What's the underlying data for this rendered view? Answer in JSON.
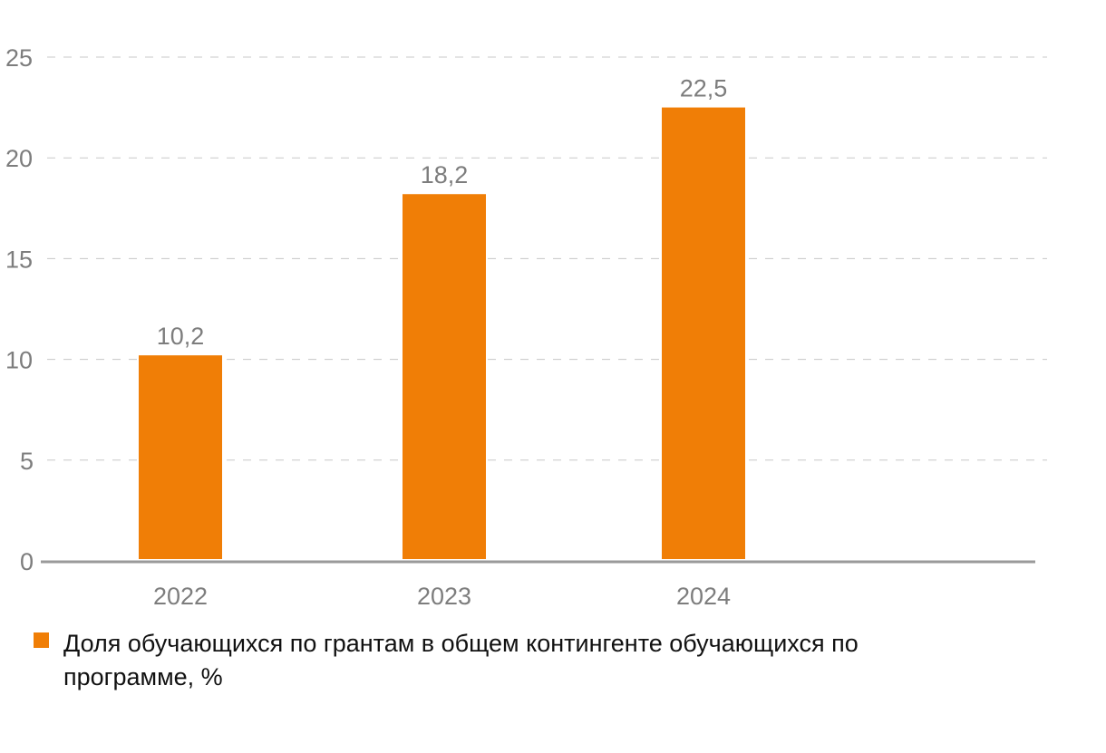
{
  "chart_data": {
    "type": "bar",
    "categories": [
      "2022",
      "2023",
      "2024"
    ],
    "values": [
      10.2,
      18.2,
      22.5
    ],
    "data_labels": [
      "10,2",
      "18,2",
      "22,5"
    ],
    "series": [
      {
        "name": "Доля обучающихся по грантам в общем контингенте обучающихся по программе, %",
        "values": [
          10.2,
          18.2,
          22.5
        ]
      }
    ],
    "yticks": [
      0,
      5,
      10,
      15,
      20,
      25
    ],
    "ylim": [
      0,
      25
    ],
    "grid": true,
    "legend": "bottom-left",
    "color": "#F07E06"
  }
}
